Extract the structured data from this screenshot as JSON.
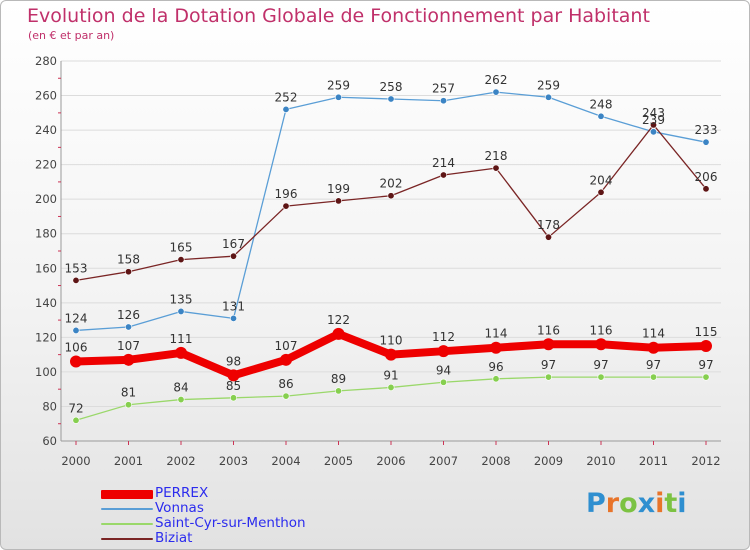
{
  "header": {
    "title": "Evolution de la Dotation Globale de Fonctionnement par Habitant",
    "subtitle": "(en € et par an)"
  },
  "logo": {
    "text": "Proxiti",
    "letters": [
      {
        "ch": "P",
        "color": "#2f8fd0"
      },
      {
        "ch": "r",
        "color": "#e8742a"
      },
      {
        "ch": "o",
        "color": "#7cc242"
      },
      {
        "ch": "x",
        "color": "#2f8fd0"
      },
      {
        "ch": "i",
        "color": "#e8742a"
      },
      {
        "ch": "t",
        "color": "#7cc242"
      },
      {
        "ch": "i",
        "color": "#2f8fd0"
      }
    ]
  },
  "chart_data": {
    "type": "line",
    "title": "Evolution de la Dotation Globale de Fonctionnement par Habitant",
    "subtitle": "(en € et par an)",
    "xlabel": "",
    "ylabel": "",
    "categories": [
      "2000",
      "2001",
      "2002",
      "2003",
      "2004",
      "2005",
      "2006",
      "2007",
      "2008",
      "2009",
      "2010",
      "2011",
      "2012"
    ],
    "ylim": [
      60,
      280
    ],
    "yticks": [
      60,
      80,
      100,
      120,
      140,
      160,
      180,
      200,
      220,
      240,
      260,
      280
    ],
    "grid": "horizontal",
    "legend_position": "bottom-left",
    "series": [
      {
        "name": "PERREX",
        "color": "#ee0000",
        "marker": "#ee0000",
        "weight": "thick",
        "values": [
          106,
          107,
          111,
          98,
          107,
          122,
          110,
          112,
          114,
          116,
          116,
          114,
          115
        ]
      },
      {
        "name": "Vonnas",
        "color": "#5a9ed6",
        "marker": "#3b84c4",
        "weight": "thin",
        "values": [
          124,
          126,
          135,
          131,
          252,
          259,
          258,
          257,
          262,
          259,
          248,
          239,
          233
        ]
      },
      {
        "name": "Saint-Cyr-sur-Menthon",
        "color": "#9ad86a",
        "marker": "#86cf4f",
        "weight": "thin",
        "values": [
          72,
          81,
          84,
          85,
          86,
          89,
          91,
          94,
          96,
          97,
          97,
          97,
          97
        ]
      },
      {
        "name": "Biziat",
        "color": "#7a2525",
        "marker": "#5e1515",
        "weight": "thin",
        "values": [
          153,
          158,
          165,
          167,
          196,
          199,
          202,
          214,
          218,
          178,
          204,
          243,
          206
        ]
      }
    ]
  }
}
